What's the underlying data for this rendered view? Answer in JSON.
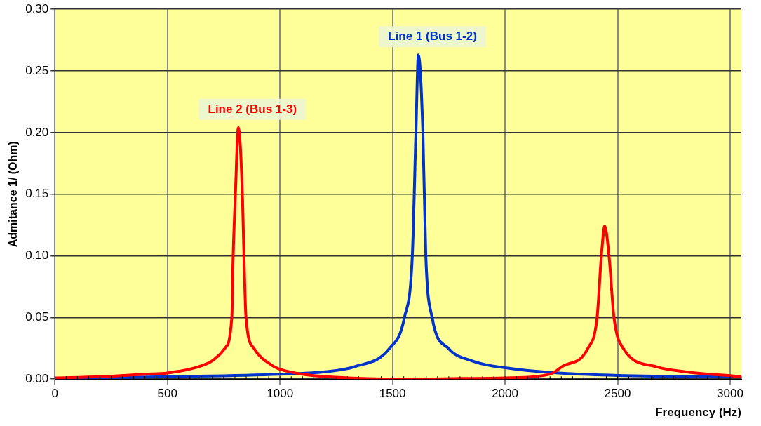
{
  "chart_data": {
    "type": "line",
    "xlabel": "Frequency (Hz)",
    "ylabel": "Admitance 1/ (Ohm)",
    "xlim": [
      0,
      3050
    ],
    "ylim": [
      0,
      0.3
    ],
    "xticks": [
      0,
      500,
      1000,
      1500,
      2000,
      2500,
      3000
    ],
    "yticks": [
      {
        "value": 0,
        "label": "0.00"
      },
      {
        "value": 0.05,
        "label": "0.05"
      },
      {
        "value": 0.1,
        "label": "0.10"
      },
      {
        "value": 0.15,
        "label": "0.15"
      },
      {
        "value": 0.2,
        "label": "0.20"
      },
      {
        "value": 0.25,
        "label": "0.25"
      },
      {
        "value": 0.3,
        "label": "0.30"
      }
    ],
    "grid": true,
    "legend": false,
    "marker": "none",
    "line_style": "solid",
    "series": [
      {
        "name": "Line 2 (Bus 1-3)",
        "color": "#ff0000",
        "x": [
          0,
          200,
          400,
          500,
          638,
          700,
          755,
          786,
          792,
          802,
          815,
          833,
          840,
          849,
          884,
          975,
          1000,
          1100,
          1300,
          1600,
          1800,
          2000,
          2200,
          2252,
          2368,
          2409,
          2428,
          2443,
          2462,
          2484,
          2525,
          2673,
          2800,
          3050
        ],
        "values": [
          0.001,
          0.002,
          0.004,
          0.005,
          0.01,
          0.015,
          0.025,
          0.05,
          0.1,
          0.15,
          0.204,
          0.15,
          0.1,
          0.05,
          0.025,
          0.01,
          0.008,
          0.004,
          0.001,
          0.0,
          0.0005,
          0.001,
          0.004,
          0.01,
          0.025,
          0.05,
          0.1,
          0.124,
          0.1,
          0.05,
          0.025,
          0.01,
          0.006,
          0.002
        ]
      },
      {
        "name": "Line 1 (Bus 1-2)",
        "color": "#0033cc",
        "x": [
          0,
          500,
          1000,
          1200,
          1330,
          1487,
          1553,
          1588,
          1604,
          1615,
          1635,
          1648,
          1676,
          1748,
          1850,
          2053,
          2500,
          3050
        ],
        "values": [
          0.0005,
          0.002,
          0.004,
          0.006,
          0.01,
          0.025,
          0.05,
          0.1,
          0.2,
          0.263,
          0.2,
          0.1,
          0.05,
          0.025,
          0.015,
          0.008,
          0.003,
          0.002
        ]
      }
    ]
  }
}
